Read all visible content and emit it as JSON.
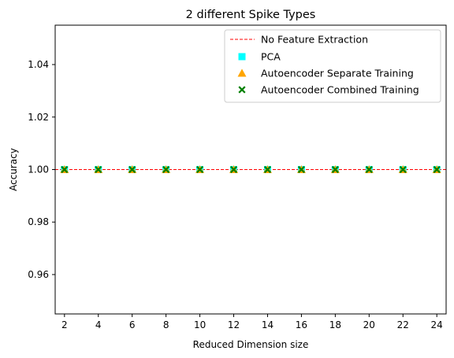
{
  "chart_data": {
    "type": "scatter",
    "title": "2 different Spike Types",
    "xlabel": "Reduced Dimension size",
    "ylabel": "Accuracy",
    "x": [
      2,
      4,
      6,
      8,
      10,
      12,
      14,
      16,
      18,
      20,
      22,
      24
    ],
    "xticks": [
      "2",
      "4",
      "6",
      "8",
      "10",
      "12",
      "14",
      "16",
      "18",
      "20",
      "22",
      "24"
    ],
    "yticks": [
      "0.96",
      "0.98",
      "1.00",
      "1.02",
      "1.04"
    ],
    "ytick_values": [
      0.96,
      0.98,
      1.0,
      1.02,
      1.04
    ],
    "xlim": [
      1.45,
      24.55
    ],
    "ylim": [
      0.945,
      1.055
    ],
    "grid": false,
    "legend_position": "top-right",
    "baseline": {
      "name": "No Feature Extraction",
      "value": 1.0,
      "style": "dashed",
      "color": "#ff0000"
    },
    "series": [
      {
        "name": "PCA",
        "marker": "square",
        "color": "#00ffff",
        "values": [
          1.0,
          1.0,
          1.0,
          1.0,
          1.0,
          1.0,
          1.0,
          1.0,
          1.0,
          1.0,
          1.0,
          1.0
        ]
      },
      {
        "name": "Autoencoder Separate Training",
        "marker": "triangle",
        "color": "#ffa500",
        "values": [
          1.0,
          1.0,
          1.0,
          1.0,
          1.0,
          1.0,
          1.0,
          1.0,
          1.0,
          1.0,
          1.0,
          1.0
        ]
      },
      {
        "name": "Autoencoder Combined Training",
        "marker": "x",
        "color": "#008000",
        "values": [
          1.0,
          1.0,
          1.0,
          1.0,
          1.0,
          1.0,
          1.0,
          1.0,
          1.0,
          1.0,
          1.0,
          1.0
        ]
      }
    ]
  }
}
